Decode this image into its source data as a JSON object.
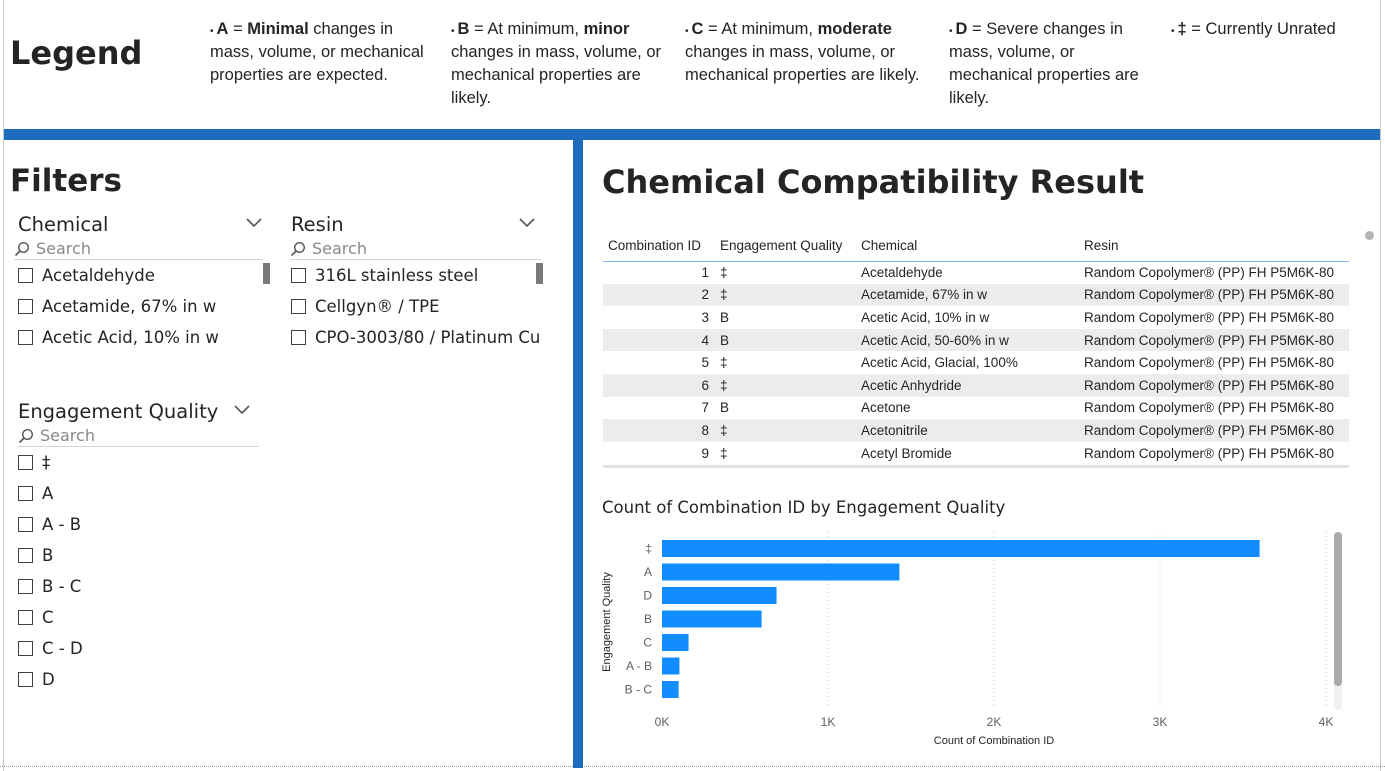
{
  "legend": {
    "title": "Legend",
    "items": [
      {
        "key": "A",
        "pre": " = ",
        "bold": "Minimal",
        "post": " changes in mass, volume, or mechanical properties are expected."
      },
      {
        "key": "B",
        "pre": " = At minimum, ",
        "bold": "minor",
        "post": " changes in mass, volume, or mechanical properties are likely."
      },
      {
        "key": "C",
        "pre": " = At minimum, ",
        "bold": "moderate",
        "post": " changes in mass, volume, or mechanical properties are likely."
      },
      {
        "key": "D",
        "pre": " = Severe changes in mass, volume, or mechanical properties are likely.",
        "bold": "",
        "post": ""
      },
      {
        "key": "‡",
        "pre": " = Currently Unrated",
        "bold": "",
        "post": ""
      }
    ]
  },
  "filters": {
    "title": "Filters",
    "search_placeholder": "Search",
    "chemical": {
      "header": "Chemical",
      "items": [
        "Acetaldehyde",
        "Acetamide, 67% in w",
        "Acetic Acid, 10% in w"
      ]
    },
    "resin": {
      "header": "Resin",
      "items": [
        "316L stainless steel",
        "Cellgyn® / TPE",
        "CPO-3003/80 / Platinum Cu..."
      ]
    },
    "engagement": {
      "header": "Engagement Quality",
      "items": [
        "‡",
        "A",
        "A - B",
        "B",
        "B - C",
        "C",
        "C - D",
        "D"
      ]
    }
  },
  "result": {
    "title": "Chemical Compatibility Result",
    "columns": [
      "Combination ID",
      "Engagement Quality",
      "Chemical",
      "Resin"
    ],
    "rows": [
      {
        "id": "1",
        "quality": "‡",
        "chemical": "Acetaldehyde",
        "resin": "Random Copolymer® (PP) FH P5M6K-80"
      },
      {
        "id": "2",
        "quality": "‡",
        "chemical": "Acetamide, 67% in w",
        "resin": "Random Copolymer® (PP) FH P5M6K-80"
      },
      {
        "id": "3",
        "quality": "B",
        "chemical": "Acetic Acid, 10% in w",
        "resin": "Random Copolymer® (PP) FH P5M6K-80"
      },
      {
        "id": "4",
        "quality": "B",
        "chemical": "Acetic Acid, 50-60% in w",
        "resin": "Random Copolymer® (PP) FH P5M6K-80"
      },
      {
        "id": "5",
        "quality": "‡",
        "chemical": "Acetic Acid, Glacial, 100%",
        "resin": "Random Copolymer® (PP) FH P5M6K-80"
      },
      {
        "id": "6",
        "quality": "‡",
        "chemical": "Acetic Anhydride",
        "resin": "Random Copolymer® (PP) FH P5M6K-80"
      },
      {
        "id": "7",
        "quality": "B",
        "chemical": "Acetone",
        "resin": "Random Copolymer® (PP) FH P5M6K-80"
      },
      {
        "id": "8",
        "quality": "‡",
        "chemical": "Acetonitrile",
        "resin": "Random Copolymer® (PP) FH P5M6K-80"
      },
      {
        "id": "9",
        "quality": "‡",
        "chemical": "Acetyl Bromide",
        "resin": "Random Copolymer® (PP) FH P5M6K-80"
      }
    ]
  },
  "chart_data": {
    "type": "bar",
    "orientation": "horizontal",
    "title": "Count of Combination ID by Engagement Quality",
    "xlabel": "Count of Combination ID",
    "ylabel": "Engagement Quality",
    "categories": [
      "‡",
      "A",
      "D",
      "B",
      "C",
      "A - B",
      "B - C"
    ],
    "values": [
      3600,
      1430,
      690,
      600,
      160,
      105,
      100
    ],
    "xlim": [
      0,
      4000
    ],
    "xticks": [
      "0K",
      "1K",
      "2K",
      "3K",
      "4K"
    ],
    "bar_color": "#118dff",
    "grid": "vertical dotted"
  }
}
